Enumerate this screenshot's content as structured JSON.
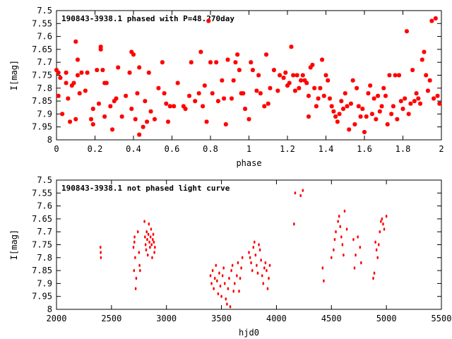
{
  "chart_data": [
    {
      "type": "scatter",
      "title": "190843-3938.1 phased with P=48.270day",
      "xlabel": "phase",
      "ylabel": "I[mag]",
      "xlim": [
        0,
        2
      ],
      "ylim": [
        8,
        7.5
      ],
      "y_inverted": true,
      "xticks": [
        0,
        0.2,
        0.4,
        0.6,
        0.8,
        1,
        1.2,
        1.4,
        1.6,
        1.8,
        2
      ],
      "xtick_labels": [
        "0",
        "0.2",
        "0.4",
        "0.6",
        "0.8",
        "1",
        "1.2",
        "1.4",
        "1.6",
        "1.8",
        "2"
      ],
      "yticks": [
        7.5,
        7.55,
        7.6,
        7.65,
        7.7,
        7.75,
        7.8,
        7.85,
        7.9,
        7.95,
        8
      ],
      "ytick_labels": [
        "7.5",
        "7.55",
        "7.6",
        "7.65",
        "7.7",
        "7.75",
        "7.8",
        "7.85",
        "7.9",
        "7.95",
        "8"
      ],
      "marker_color": "#ff0000",
      "points": [
        [
          0.0,
          7.73
        ],
        [
          0.01,
          7.74
        ],
        [
          0.01,
          7.83
        ],
        [
          0.02,
          7.76
        ],
        [
          0.03,
          7.9
        ],
        [
          0.05,
          7.74
        ],
        [
          0.05,
          7.78
        ],
        [
          0.06,
          7.84
        ],
        [
          0.07,
          7.93
        ],
        [
          0.08,
          7.79
        ],
        [
          0.09,
          7.78
        ],
        [
          0.1,
          7.62
        ],
        [
          0.1,
          7.92
        ],
        [
          0.11,
          7.75
        ],
        [
          0.11,
          7.69
        ],
        [
          0.12,
          7.82
        ],
        [
          0.13,
          7.74
        ],
        [
          0.15,
          7.81
        ],
        [
          0.16,
          7.74
        ],
        [
          0.18,
          7.92
        ],
        [
          0.19,
          7.94
        ],
        [
          0.19,
          7.88
        ],
        [
          0.21,
          7.73
        ],
        [
          0.22,
          7.86
        ],
        [
          0.23,
          7.65
        ],
        [
          0.23,
          7.64
        ],
        [
          0.24,
          7.73
        ],
        [
          0.25,
          7.78
        ],
        [
          0.25,
          7.91
        ],
        [
          0.26,
          7.78
        ],
        [
          0.28,
          7.87
        ],
        [
          0.29,
          7.96
        ],
        [
          0.3,
          7.85
        ],
        [
          0.31,
          7.84
        ],
        [
          0.32,
          7.72
        ],
        [
          0.34,
          7.91
        ],
        [
          0.36,
          7.83
        ],
        [
          0.38,
          7.74
        ],
        [
          0.39,
          7.66
        ],
        [
          0.39,
          7.88
        ],
        [
          0.4,
          7.67
        ],
        [
          0.41,
          7.92
        ],
        [
          0.42,
          7.82
        ],
        [
          0.43,
          7.98
        ],
        [
          0.43,
          7.72
        ],
        [
          0.45,
          7.95
        ],
        [
          0.46,
          7.85
        ],
        [
          0.47,
          7.93
        ],
        [
          0.48,
          7.74
        ],
        [
          0.49,
          7.89
        ],
        [
          0.51,
          7.92
        ],
        [
          0.53,
          7.8
        ],
        [
          0.55,
          7.7
        ],
        [
          0.56,
          7.82
        ],
        [
          0.57,
          7.86
        ],
        [
          0.58,
          7.93
        ],
        [
          0.59,
          7.87
        ],
        [
          0.61,
          7.87
        ],
        [
          0.63,
          7.78
        ],
        [
          0.66,
          7.87
        ],
        [
          0.67,
          7.88
        ],
        [
          0.69,
          7.83
        ],
        [
          0.7,
          7.7
        ],
        [
          0.72,
          7.85
        ],
        [
          0.74,
          7.82
        ],
        [
          0.75,
          7.66
        ],
        [
          0.76,
          7.87
        ],
        [
          0.77,
          7.79
        ],
        [
          0.78,
          7.93
        ],
        [
          0.79,
          7.54
        ],
        [
          0.8,
          7.7
        ],
        [
          0.81,
          7.82
        ],
        [
          0.83,
          7.7
        ],
        [
          0.84,
          7.85
        ],
        [
          0.86,
          7.77
        ],
        [
          0.87,
          7.84
        ],
        [
          0.88,
          7.94
        ],
        [
          0.89,
          7.69
        ],
        [
          0.91,
          7.84
        ],
        [
          0.92,
          7.77
        ],
        [
          0.93,
          7.7
        ],
        [
          0.94,
          7.67
        ],
        [
          0.95,
          7.73
        ],
        [
          0.96,
          7.82
        ],
        [
          0.97,
          7.82
        ],
        [
          0.98,
          7.88
        ],
        [
          1.0,
          7.92
        ],
        [
          1.01,
          7.7
        ],
        [
          1.02,
          7.73
        ],
        [
          1.04,
          7.81
        ],
        [
          1.05,
          7.75
        ],
        [
          1.06,
          7.82
        ],
        [
          1.08,
          7.87
        ],
        [
          1.09,
          7.67
        ],
        [
          1.1,
          7.86
        ],
        [
          1.11,
          7.8
        ],
        [
          1.13,
          7.73
        ],
        [
          1.15,
          7.81
        ],
        [
          1.16,
          7.75
        ],
        [
          1.18,
          7.76
        ],
        [
          1.19,
          7.74
        ],
        [
          1.2,
          7.79
        ],
        [
          1.21,
          7.78
        ],
        [
          1.22,
          7.64
        ],
        [
          1.23,
          7.75
        ],
        [
          1.24,
          7.81
        ],
        [
          1.25,
          7.75
        ],
        [
          1.26,
          7.8
        ],
        [
          1.27,
          7.77
        ],
        [
          1.28,
          7.75
        ],
        [
          1.29,
          7.77
        ],
        [
          1.3,
          7.78
        ],
        [
          1.31,
          7.83
        ],
        [
          1.31,
          7.91
        ],
        [
          1.32,
          7.72
        ],
        [
          1.33,
          7.71
        ],
        [
          1.34,
          7.8
        ],
        [
          1.35,
          7.87
        ],
        [
          1.36,
          7.84
        ],
        [
          1.37,
          7.8
        ],
        [
          1.38,
          7.69
        ],
        [
          1.39,
          7.83
        ],
        [
          1.4,
          7.75
        ],
        [
          1.41,
          7.77
        ],
        [
          1.42,
          7.84
        ],
        [
          1.43,
          7.87
        ],
        [
          1.44,
          7.89
        ],
        [
          1.45,
          7.91
        ],
        [
          1.46,
          7.93
        ],
        [
          1.47,
          7.9
        ],
        [
          1.48,
          7.85
        ],
        [
          1.49,
          7.88
        ],
        [
          1.5,
          7.82
        ],
        [
          1.51,
          7.87
        ],
        [
          1.52,
          7.96
        ],
        [
          1.53,
          7.86
        ],
        [
          1.54,
          7.77
        ],
        [
          1.55,
          7.94
        ],
        [
          1.56,
          7.8
        ],
        [
          1.57,
          7.87
        ],
        [
          1.58,
          7.91
        ],
        [
          1.59,
          7.88
        ],
        [
          1.6,
          7.97
        ],
        [
          1.61,
          7.91
        ],
        [
          1.62,
          7.82
        ],
        [
          1.63,
          7.79
        ],
        [
          1.64,
          7.9
        ],
        [
          1.65,
          7.84
        ],
        [
          1.66,
          7.92
        ],
        [
          1.67,
          7.83
        ],
        [
          1.68,
          7.89
        ],
        [
          1.69,
          7.87
        ],
        [
          1.7,
          7.8
        ],
        [
          1.71,
          7.83
        ],
        [
          1.72,
          7.94
        ],
        [
          1.73,
          7.75
        ],
        [
          1.74,
          7.9
        ],
        [
          1.75,
          7.87
        ],
        [
          1.76,
          7.75
        ],
        [
          1.77,
          7.92
        ],
        [
          1.78,
          7.75
        ],
        [
          1.79,
          7.85
        ],
        [
          1.8,
          7.88
        ],
        [
          1.81,
          7.84
        ],
        [
          1.82,
          7.58
        ],
        [
          1.83,
          7.9
        ],
        [
          1.84,
          7.86
        ],
        [
          1.85,
          7.73
        ],
        [
          1.86,
          7.85
        ],
        [
          1.87,
          7.82
        ],
        [
          1.88,
          7.84
        ],
        [
          1.89,
          7.86
        ],
        [
          1.9,
          7.69
        ],
        [
          1.91,
          7.66
        ],
        [
          1.92,
          7.75
        ],
        [
          1.93,
          7.81
        ],
        [
          1.94,
          7.77
        ],
        [
          1.95,
          7.54
        ],
        [
          1.96,
          7.84
        ],
        [
          1.97,
          7.53
        ],
        [
          1.98,
          7.83
        ],
        [
          1.99,
          7.86
        ]
      ]
    },
    {
      "type": "scatter",
      "title": "190843-3938.1 not phased light curve",
      "xlabel": "hjd0",
      "ylabel": "I[mag]",
      "xlim": [
        2000,
        5500
      ],
      "ylim": [
        8,
        7.5
      ],
      "y_inverted": true,
      "xticks": [
        2000,
        2500,
        3000,
        3500,
        4000,
        4500,
        5000,
        5500
      ],
      "xtick_labels": [
        "2000",
        "2500",
        "3000",
        "3500",
        "4000",
        "4500",
        "5000",
        "5500"
      ],
      "yticks": [
        7.5,
        7.55,
        7.6,
        7.65,
        7.7,
        7.75,
        7.8,
        7.85,
        7.9,
        7.95,
        8
      ],
      "ytick_labels": [
        "7.5",
        "7.55",
        "7.6",
        "7.65",
        "7.7",
        "7.75",
        "7.8",
        "7.85",
        "7.9",
        "7.95",
        "8"
      ],
      "marker_color": "#ff0000",
      "points": [
        [
          2400,
          7.76
        ],
        [
          2402,
          7.78
        ],
        [
          2404,
          7.8
        ],
        [
          2700,
          7.76
        ],
        [
          2705,
          7.85
        ],
        [
          2708,
          7.74
        ],
        [
          2710,
          7.72
        ],
        [
          2715,
          7.8
        ],
        [
          2720,
          7.92
        ],
        [
          2725,
          7.88
        ],
        [
          2740,
          7.7
        ],
        [
          2750,
          7.78
        ],
        [
          2755,
          7.83
        ],
        [
          2760,
          7.85
        ],
        [
          2800,
          7.66
        ],
        [
          2805,
          7.72
        ],
        [
          2810,
          7.75
        ],
        [
          2815,
          7.77
        ],
        [
          2820,
          7.7
        ],
        [
          2825,
          7.73
        ],
        [
          2830,
          7.79
        ],
        [
          2835,
          7.71
        ],
        [
          2840,
          7.67
        ],
        [
          2845,
          7.74
        ],
        [
          2850,
          7.76
        ],
        [
          2855,
          7.72
        ],
        [
          2860,
          7.69
        ],
        [
          2865,
          7.75
        ],
        [
          2870,
          7.8
        ],
        [
          2875,
          7.73
        ],
        [
          2880,
          7.71
        ],
        [
          2885,
          7.74
        ],
        [
          2890,
          7.78
        ],
        [
          2895,
          7.76
        ],
        [
          3400,
          7.87
        ],
        [
          3410,
          7.9
        ],
        [
          3420,
          7.85
        ],
        [
          3430,
          7.92
        ],
        [
          3440,
          7.88
        ],
        [
          3450,
          7.83
        ],
        [
          3460,
          7.89
        ],
        [
          3470,
          7.94
        ],
        [
          3480,
          7.86
        ],
        [
          3490,
          7.91
        ],
        [
          3500,
          7.95
        ],
        [
          3510,
          7.87
        ],
        [
          3520,
          7.84
        ],
        [
          3530,
          7.9
        ],
        [
          3540,
          7.96
        ],
        [
          3550,
          7.98
        ],
        [
          3560,
          7.92
        ],
        [
          3570,
          7.88
        ],
        [
          3580,
          7.99
        ],
        [
          3590,
          7.85
        ],
        [
          3600,
          7.83
        ],
        [
          3610,
          7.93
        ],
        [
          3620,
          7.9
        ],
        [
          3640,
          7.87
        ],
        [
          3650,
          7.82
        ],
        [
          3660,
          7.93
        ],
        [
          3670,
          7.88
        ],
        [
          3680,
          7.84
        ],
        [
          3690,
          7.8
        ],
        [
          3750,
          7.78
        ],
        [
          3760,
          7.8
        ],
        [
          3770,
          7.82
        ],
        [
          3780,
          7.85
        ],
        [
          3790,
          7.76
        ],
        [
          3800,
          7.74
        ],
        [
          3810,
          7.79
        ],
        [
          3820,
          7.83
        ],
        [
          3830,
          7.86
        ],
        [
          3840,
          7.75
        ],
        [
          3850,
          7.77
        ],
        [
          3860,
          7.81
        ],
        [
          3870,
          7.87
        ],
        [
          3880,
          7.9
        ],
        [
          3890,
          7.84
        ],
        [
          3900,
          7.82
        ],
        [
          3910,
          7.85
        ],
        [
          3920,
          7.92
        ],
        [
          3930,
          7.88
        ],
        [
          3940,
          7.83
        ],
        [
          4160,
          7.67
        ],
        [
          4170,
          7.55
        ],
        [
          4220,
          7.56
        ],
        [
          4240,
          7.54
        ],
        [
          4420,
          7.84
        ],
        [
          4430,
          7.89
        ],
        [
          4500,
          7.8
        ],
        [
          4520,
          7.77
        ],
        [
          4530,
          7.73
        ],
        [
          4540,
          7.7
        ],
        [
          4560,
          7.66
        ],
        [
          4570,
          7.64
        ],
        [
          4580,
          7.68
        ],
        [
          4590,
          7.72
        ],
        [
          4600,
          7.75
        ],
        [
          4610,
          7.79
        ],
        [
          4620,
          7.62
        ],
        [
          4640,
          7.69
        ],
        [
          4700,
          7.73
        ],
        [
          4710,
          7.84
        ],
        [
          4720,
          7.79
        ],
        [
          4740,
          7.72
        ],
        [
          4760,
          7.76
        ],
        [
          4770,
          7.82
        ],
        [
          4880,
          7.88
        ],
        [
          4890,
          7.86
        ],
        [
          4900,
          7.74
        ],
        [
          4910,
          7.77
        ],
        [
          4920,
          7.8
        ],
        [
          4930,
          7.75
        ],
        [
          4940,
          7.7
        ],
        [
          4950,
          7.66
        ],
        [
          4960,
          7.65
        ],
        [
          4970,
          7.67
        ],
        [
          4980,
          7.69
        ],
        [
          5000,
          7.64
        ]
      ]
    }
  ]
}
